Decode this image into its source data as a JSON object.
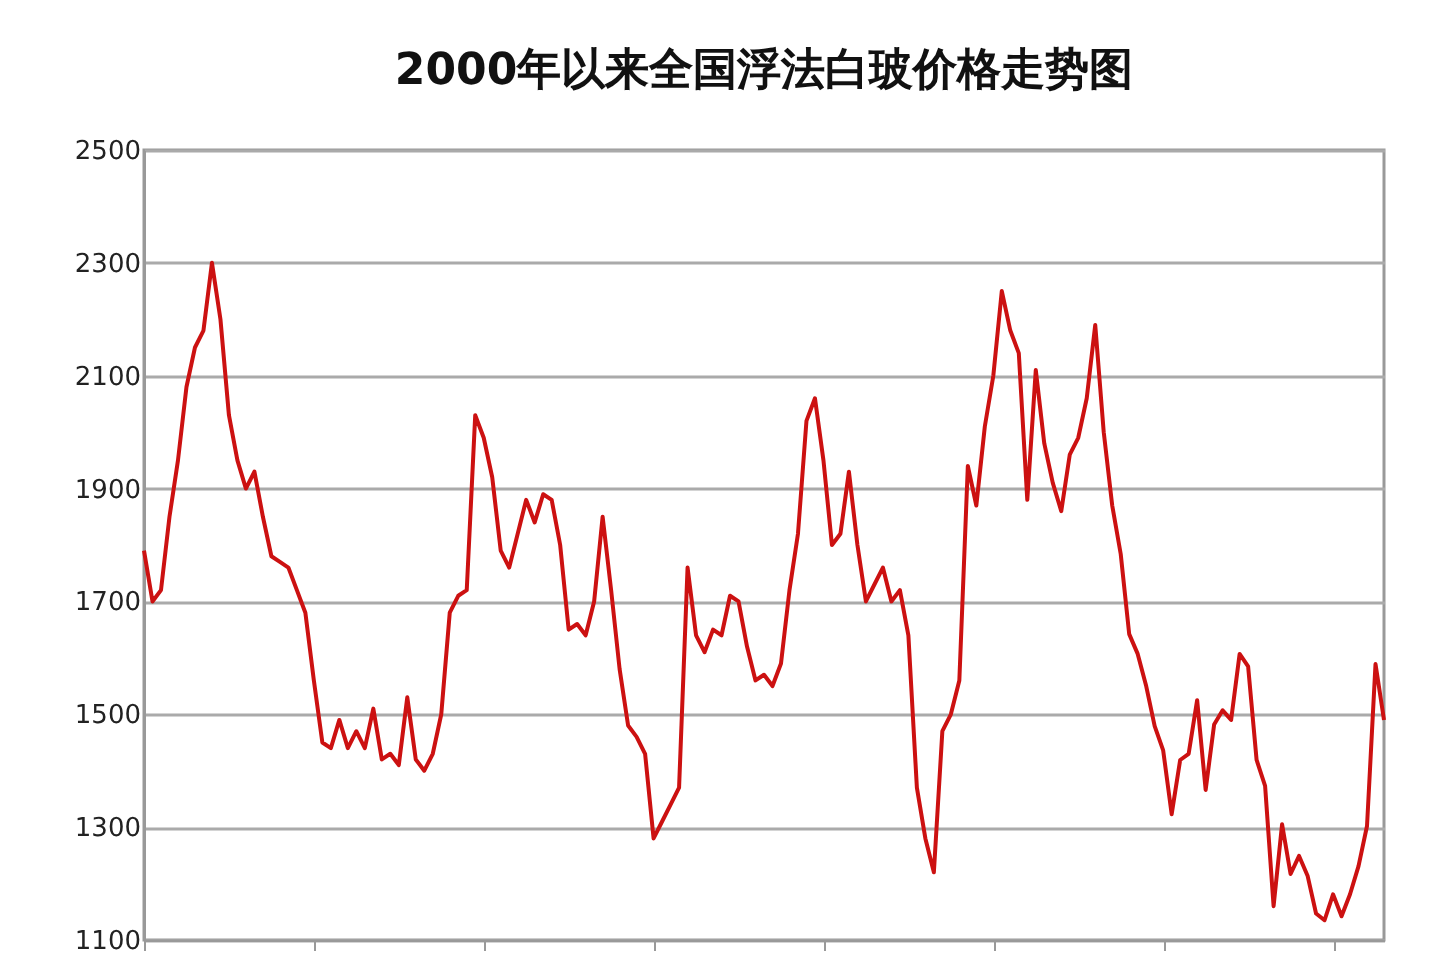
{
  "chart_data": {
    "type": "line",
    "title": "2000年以来全国浮法白玻价格走势图",
    "categories": [
      null,
      null,
      null,
      null,
      null,
      null,
      null,
      null,
      null,
      null,
      null,
      null,
      null,
      null,
      null,
      null,
      null,
      null,
      null,
      null,
      null,
      null,
      null,
      null,
      null,
      null,
      null,
      null,
      null,
      null,
      null,
      null,
      null,
      null,
      null,
      null,
      null,
      null,
      null,
      null,
      null,
      null,
      null,
      null,
      null,
      null,
      null,
      null,
      null,
      null,
      null,
      null,
      null,
      null,
      null,
      null,
      null,
      null,
      null,
      null,
      null,
      null,
      null,
      null,
      null,
      null,
      null,
      null,
      null,
      null,
      null,
      null,
      null,
      null,
      null,
      null,
      null,
      null,
      null,
      null,
      null,
      null,
      null,
      null,
      null,
      null,
      null,
      null,
      null,
      null,
      null,
      null,
      null,
      null,
      null,
      null,
      null,
      null,
      null,
      null,
      null,
      null,
      null,
      null,
      null,
      null,
      null,
      null,
      null,
      null,
      null,
      null,
      null,
      null,
      null,
      null,
      null,
      null,
      null,
      null,
      null,
      null,
      null,
      null,
      null,
      null,
      null,
      null,
      null,
      null,
      null,
      null,
      null,
      null,
      null,
      null,
      null,
      null,
      null,
      null,
      null,
      null,
      null,
      null,
      null,
      null,
      null
    ],
    "series": [
      {
        "color": "#cc1111",
        "values": [
          1790,
          1700,
          1720,
          1850,
          1950,
          2080,
          2150,
          2180,
          2300,
          2200,
          2030,
          1950,
          1900,
          1930,
          1850,
          1780,
          1770,
          1760,
          1720,
          1680,
          1560,
          1450,
          1440,
          1490,
          1440,
          1470,
          1440,
          1510,
          1420,
          1430,
          1410,
          1530,
          1420,
          1400,
          1430,
          1500,
          1680,
          1710,
          1720,
          2030,
          1990,
          1920,
          1790,
          1760,
          1820,
          1880,
          1840,
          1890,
          1880,
          1800,
          1650,
          1660,
          1640,
          1700,
          1850,
          1720,
          1580,
          1480,
          1460,
          1430,
          1280,
          1310,
          1340,
          1370,
          1760,
          1640,
          1610,
          1650,
          1640,
          1710,
          1700,
          1620,
          1560,
          1570,
          1550,
          1590,
          1720,
          1820,
          2020,
          2060,
          1950,
          1800,
          1820,
          1930,
          1800,
          1700,
          1730,
          1760,
          1700,
          1720,
          1640,
          1370,
          1280,
          1220,
          1470,
          1500,
          1560,
          1940,
          1870,
          2010,
          2100,
          2250,
          2180,
          2140,
          1880,
          2110,
          1980,
          1910,
          1860,
          1960,
          1990,
          2060,
          2190,
          2000,
          1870,
          1784,
          1642,
          1607,
          1550,
          1479,
          1436,
          1323,
          1419,
          1430,
          1525,
          1366,
          1482,
          1507,
          1490,
          1607,
          1585,
          1419,
          1373,
          1160,
          1305,
          1217,
          1249,
          1214,
          1147,
          1135,
          1181,
          1142,
          1181,
          1231,
          1302,
          1589,
          1490
        ]
      }
    ],
    "ylim": [
      1100,
      2500
    ],
    "yticks": [
      1100,
      1300,
      1500,
      1700,
      1900,
      2100,
      2300,
      2500
    ],
    "grid": "y",
    "tick_labels": "y",
    "line_style": "solid",
    "marker": "none"
  }
}
